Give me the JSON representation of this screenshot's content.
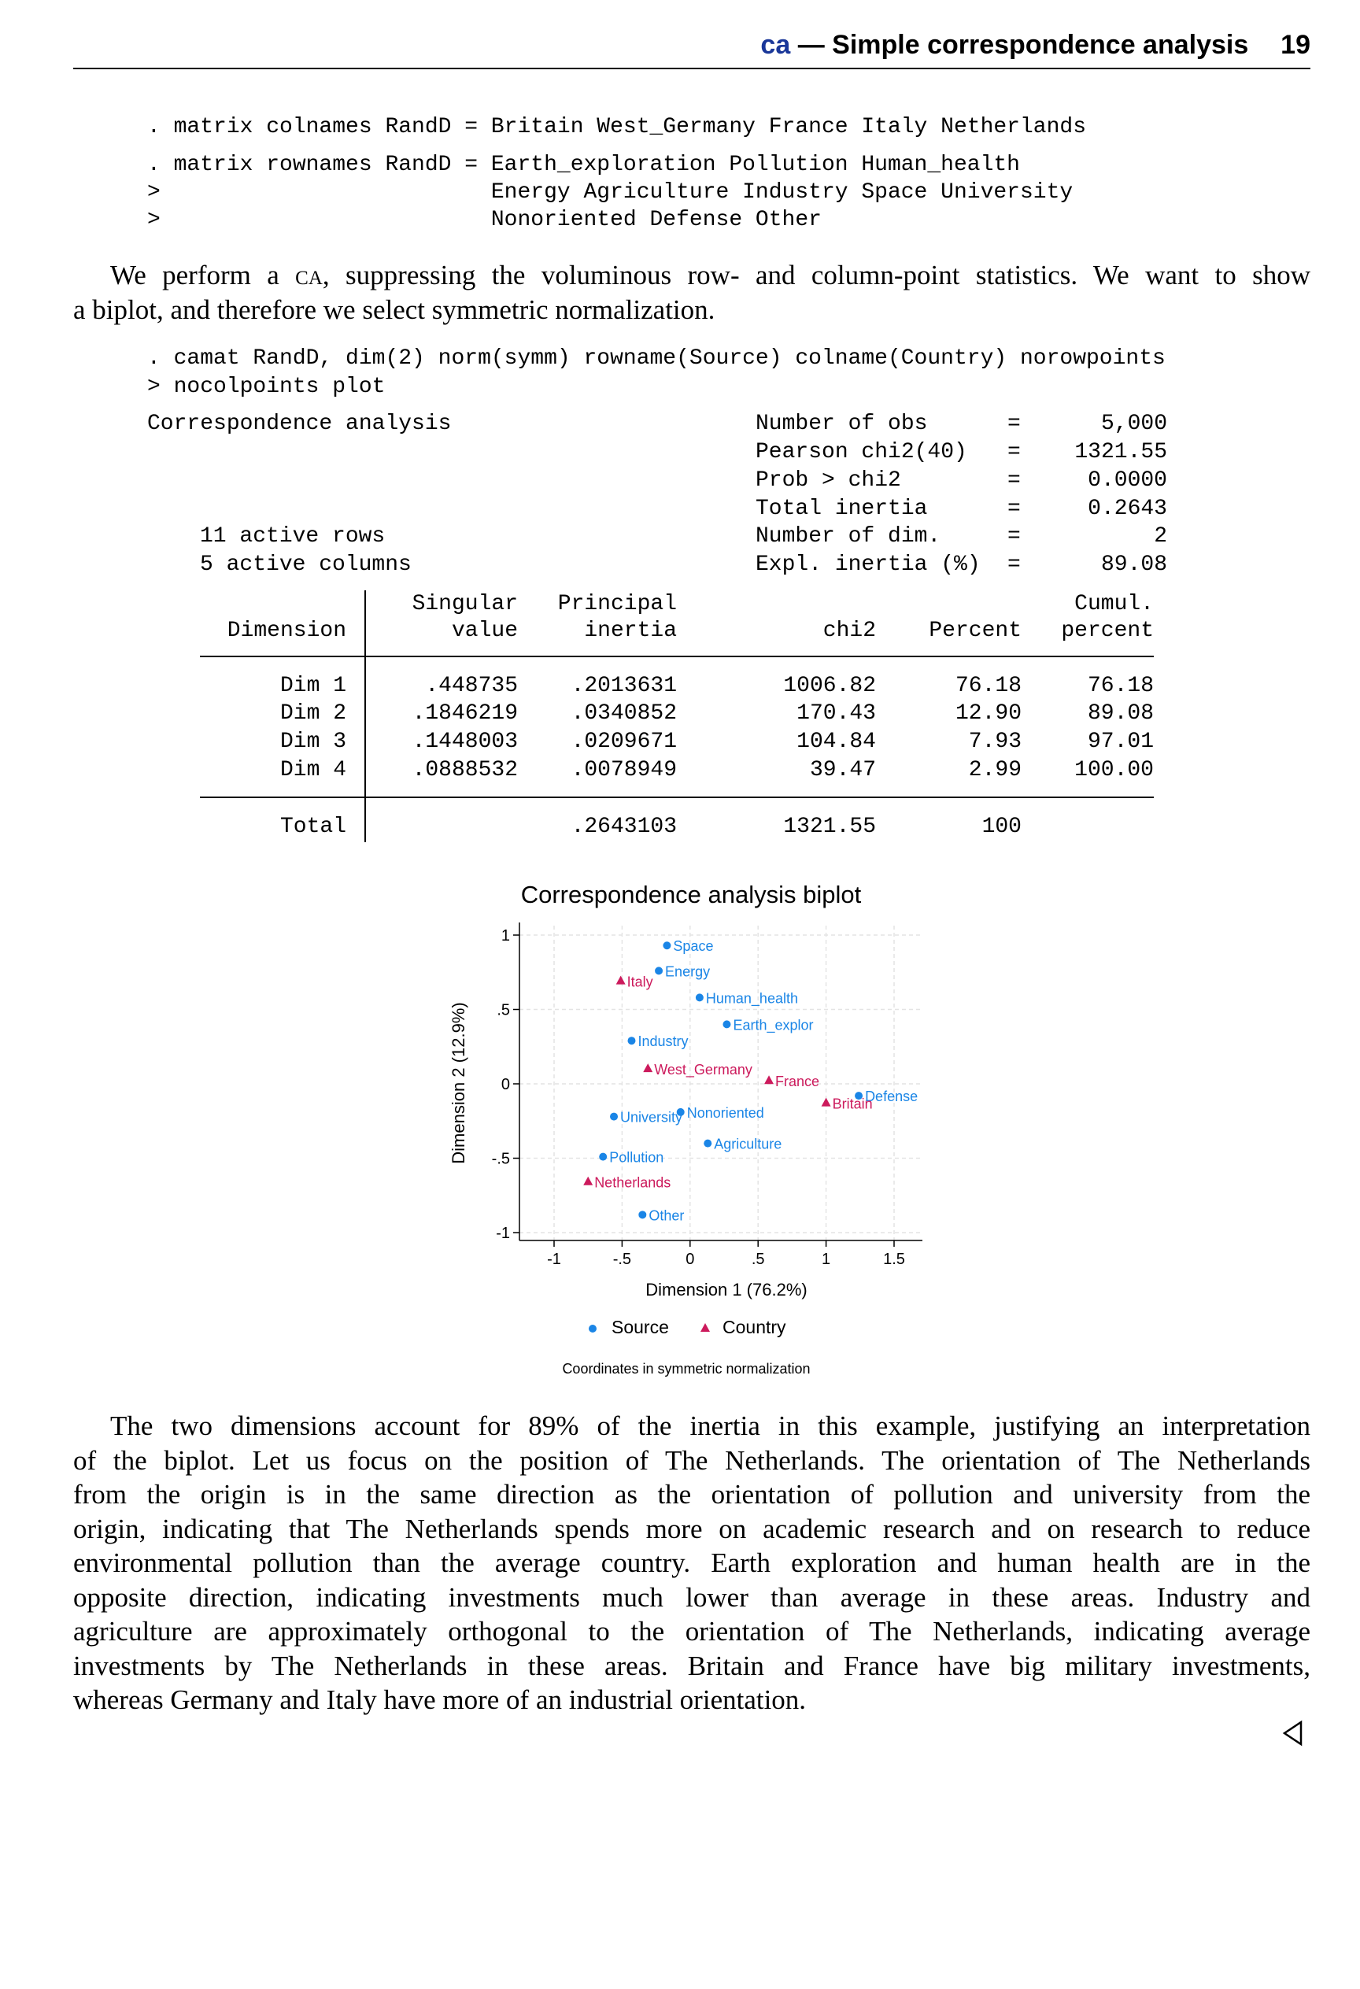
{
  "header": {
    "command": "ca",
    "title": "— Simple correspondence analysis",
    "page_number": "19"
  },
  "code_block_1": [
    ". matrix colnames RandD = Britain West_Germany France Italy Netherlands",
    ". matrix rownames RandD = Earth_exploration Pollution Human_health",
    ">                         Energy Agriculture Industry Space University",
    ">                         Nonoriented Defense Other"
  ],
  "intro": {
    "line1_a": "We perform a ",
    "line1_sc": "ca",
    "line1_b": ", suppressing the voluminous row- and column-point statistics. We want to show",
    "line2": "a biplot, and therefore we select symmetric normalization."
  },
  "code_block_2": [
    ". camat RandD, dim(2) norm(symm) rowname(Source) colname(Country) norowpoints",
    "> nocolpoints plot"
  ],
  "output": {
    "title": "Correspondence analysis",
    "rows_text": "11 active rows",
    "cols_text": "5 active columns",
    "stats": [
      {
        "label": "Number of obs",
        "value": "5,000"
      },
      {
        "label": "Pearson chi2(40)",
        "value": "1321.55"
      },
      {
        "label": "Prob > chi2",
        "value": "0.0000"
      },
      {
        "label": "Total inertia",
        "value": "0.2643"
      },
      {
        "label": "Number of dim.",
        "value": "2"
      },
      {
        "label": "Expl. inertia (%)",
        "value": "89.08"
      }
    ],
    "eq": "=",
    "table": {
      "header_top": [
        "",
        "Singular",
        "Principal",
        "",
        "",
        "Cumul."
      ],
      "header_bottom": [
        "Dimension",
        "value",
        "inertia",
        "chi2",
        "Percent",
        "percent"
      ],
      "rows": [
        [
          "Dim 1",
          ".448735",
          ".2013631",
          "1006.82",
          "76.18",
          "76.18"
        ],
        [
          "Dim 2",
          ".1846219",
          ".0340852",
          "170.43",
          "12.90",
          "89.08"
        ],
        [
          "Dim 3",
          ".1448003",
          ".0209671",
          "104.84",
          "7.93",
          "97.01"
        ],
        [
          "Dim 4",
          ".0888532",
          ".0078949",
          "39.47",
          "2.99",
          "100.00"
        ]
      ],
      "total": [
        "Total",
        "",
        ".2643103",
        "1321.55",
        "100",
        ""
      ]
    }
  },
  "chart_data": {
    "type": "scatter",
    "title": "Correspondence analysis biplot",
    "xlabel": "Dimension 1 (76.2%)",
    "ylabel": "Dimension 2 (12.9%)",
    "note": "Coordinates in symmetric normalization",
    "xlim": [
      -1,
      1.5
    ],
    "ylim": [
      -1,
      1
    ],
    "xticks": [
      "-1",
      "-.5",
      "0",
      ".5",
      "1",
      "1.5"
    ],
    "yticks": [
      "-1",
      "-.5",
      "0",
      ".5",
      "1"
    ],
    "grid": true,
    "legend_position": "bottom",
    "series": [
      {
        "name": "Source",
        "color": "#1a85e6",
        "marker": "circle",
        "points": [
          {
            "label": "Space",
            "x": -0.17,
            "y": 0.93
          },
          {
            "label": "Energy",
            "x": -0.23,
            "y": 0.76
          },
          {
            "label": "Human_health",
            "x": 0.07,
            "y": 0.58
          },
          {
            "label": "Earth_explor",
            "x": 0.27,
            "y": 0.4
          },
          {
            "label": "Industry",
            "x": -0.43,
            "y": 0.29
          },
          {
            "label": "University",
            "x": -0.56,
            "y": -0.22
          },
          {
            "label": "Nonoriented",
            "x": -0.07,
            "y": -0.19
          },
          {
            "label": "Agriculture",
            "x": 0.13,
            "y": -0.4
          },
          {
            "label": "Pollution",
            "x": -0.64,
            "y": -0.49
          },
          {
            "label": "Other",
            "x": -0.35,
            "y": -0.88
          },
          {
            "label": "Defense",
            "x": 1.24,
            "y": -0.08
          }
        ]
      },
      {
        "name": "Country",
        "color": "#cc1a5c",
        "marker": "triangle",
        "points": [
          {
            "label": "Italy",
            "x": -0.51,
            "y": 0.69
          },
          {
            "label": "West_Germany",
            "x": -0.31,
            "y": 0.1
          },
          {
            "label": "France",
            "x": 0.58,
            "y": 0.02
          },
          {
            "label": "Britain",
            "x": 1.0,
            "y": -0.13
          },
          {
            "label": "Netherlands",
            "x": -0.75,
            "y": -0.66
          }
        ]
      }
    ]
  },
  "conclusion": [
    "The two dimensions account for 89% of the inertia in this example, justifying an interpretation",
    "of the biplot. Let us focus on the position of The Netherlands. The orientation of The Netherlands",
    "from the origin is in the same direction as the orientation of pollution and university from the",
    "origin, indicating that The Netherlands spends more on academic research and on research to reduce",
    "environmental pollution than the average country. Earth exploration and human health are in the",
    "opposite direction, indicating investments much lower than average in these areas. Industry and",
    "agriculture are approximately orthogonal to the orientation of The Netherlands, indicating average",
    "investments by The Netherlands in these areas. Britain and France have big military investments,",
    "whereas Germany and Italy have more of an industrial orientation."
  ],
  "end_marker": "◁"
}
